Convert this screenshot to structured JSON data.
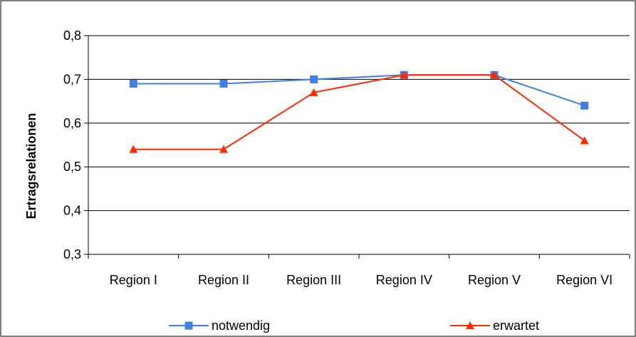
{
  "chart_data": {
    "type": "line",
    "title": "",
    "xlabel": "",
    "ylabel": "Ertragsrelationen",
    "categories": [
      "Region I",
      "Region II",
      "Region III",
      "Region IV",
      "Region V",
      "Region VI"
    ],
    "ylim": [
      0.3,
      0.8
    ],
    "yticks": [
      "0,3",
      "0,4",
      "0,5",
      "0,6",
      "0,7",
      "0,8"
    ],
    "ytick_values": [
      0.3,
      0.4,
      0.5,
      0.6,
      0.7,
      0.8
    ],
    "grid": true,
    "legend_position": "bottom",
    "series": [
      {
        "name": "notwendig",
        "values": [
          0.69,
          0.69,
          0.7,
          0.71,
          0.71,
          0.64
        ],
        "color": "#3f7fe6",
        "marker": "square"
      },
      {
        "name": "erwartet",
        "values": [
          0.54,
          0.54,
          0.67,
          0.71,
          0.71,
          0.56
        ],
        "color": "#ff2a00",
        "marker": "triangle"
      }
    ]
  }
}
